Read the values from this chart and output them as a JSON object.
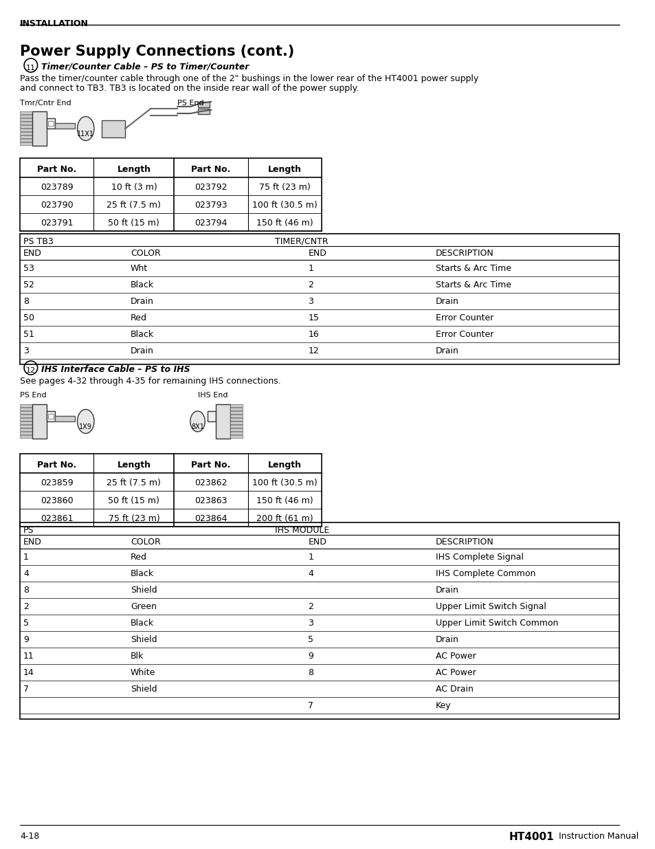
{
  "page_title": "INSTALLATION",
  "section_title": "Power Supply Connections (cont.)",
  "section11_label": "11",
  "section11_heading": "Timer/Counter Cable – PS to Timer/Counter",
  "section11_text1": "Pass the timer/counter cable through one of the 2\" bushings in the lower rear of the HT4001 power supply",
  "section11_text2": "and connect to TB3. TB3 is located on the inside rear wall of the power supply.",
  "tmr_label": "Tmr/Cntr End",
  "ps_end_label1": "PS End",
  "connector1_label": "11X1",
  "table1_headers": [
    "Part No.",
    "Length",
    "Part No.",
    "Length"
  ],
  "table1_rows": [
    [
      "023789",
      "10 ft (3 m)",
      "023792",
      "75 ft (23 m)"
    ],
    [
      "023790",
      "25 ft (7.5 m)",
      "023793",
      "100 ft (30.5 m)"
    ],
    [
      "023791",
      "50 ft (15 m)",
      "023794",
      "150 ft (46 m)"
    ]
  ],
  "table2_header1": "PS TB3",
  "table2_header2": "TIMER/CNTR",
  "table2_subheaders": [
    "END",
    "COLOR",
    "END",
    "DESCRIPTION"
  ],
  "table2_rows": [
    [
      "53",
      "Wht",
      "1",
      "Starts & Arc Time"
    ],
    [
      "52",
      "Black",
      "2",
      "Starts & Arc Time"
    ],
    [
      "8",
      "Drain",
      "3",
      "Drain"
    ],
    [
      "50",
      "Red",
      "15",
      "Error Counter"
    ],
    [
      "51",
      "Black",
      "16",
      "Error Counter"
    ],
    [
      "3",
      "Drain",
      "12",
      "Drain"
    ]
  ],
  "section12_label": "12",
  "section12_heading": "IHS Interface Cable – PS to IHS",
  "section12_text": "See pages 4-32 through 4-35 for remaining IHS connections.",
  "ps_end_label2": "PS End",
  "ihs_end_label": "IHS End",
  "connector2a_label": "1X9",
  "connector2b_label": "8X1",
  "table3_headers": [
    "Part No.",
    "Length",
    "Part No.",
    "Length"
  ],
  "table3_rows": [
    [
      "023859",
      "25 ft (7.5 m)",
      "023862",
      "100 ft (30.5 m)"
    ],
    [
      "023860",
      "50 ft (15 m)",
      "023863",
      "150 ft (46 m)"
    ],
    [
      "023861",
      "75 ft (23 m)",
      "023864",
      "200 ft (61 m)"
    ]
  ],
  "table4_header1": "PS",
  "table4_header2": "IHS MODULE",
  "table4_subheaders": [
    "END",
    "COLOR",
    "END",
    "DESCRIPTION"
  ],
  "table4_rows": [
    [
      "1",
      "Red",
      "1",
      "IHS Complete Signal"
    ],
    [
      "4",
      "Black",
      "4",
      "IHS Complete Common"
    ],
    [
      "8",
      "Shield",
      "",
      "Drain"
    ],
    [
      "2",
      "Green",
      "2",
      "Upper Limit Switch Signal"
    ],
    [
      "5",
      "Black",
      "3",
      "Upper Limit Switch Common"
    ],
    [
      "9",
      "Shield",
      "5",
      "Drain"
    ],
    [
      "11",
      "Blk",
      "9",
      "AC Power"
    ],
    [
      "14",
      "White",
      "8",
      "AC Power"
    ],
    [
      "7",
      "Shield",
      "",
      "AC Drain"
    ],
    [
      "",
      "",
      "7",
      "Key"
    ]
  ],
  "footer_left": "4-18",
  "footer_right_bold": "HT4001",
  "footer_right_normal": " Instruction Manual",
  "bg_color": "#ffffff",
  "text_color": "#000000",
  "border_color": "#000000"
}
